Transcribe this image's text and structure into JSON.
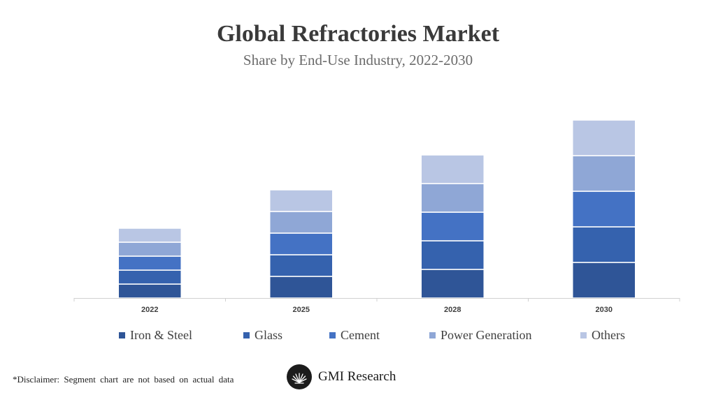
{
  "chart_data": {
    "type": "bar",
    "stacked": true,
    "title": "Global Refractories Market",
    "subtitle": "Share by End-Use Industry, 2022-2030",
    "categories": [
      "2022",
      "2025",
      "2028",
      "2030"
    ],
    "series": [
      {
        "name": "Iron & Steel",
        "color": "#2f5597",
        "values": [
          20,
          31,
          41,
          51
        ]
      },
      {
        "name": "Glass",
        "color": "#3562ae",
        "values": [
          20,
          31,
          41,
          51
        ]
      },
      {
        "name": "Cement",
        "color": "#4472c4",
        "values": [
          20,
          31,
          41,
          51
        ]
      },
      {
        "name": "Power Generation",
        "color": "#8fa7d6",
        "values": [
          20,
          31,
          41,
          51
        ]
      },
      {
        "name": "Others",
        "color": "#b9c6e4",
        "values": [
          20,
          31,
          41,
          51
        ]
      }
    ],
    "ylim": [
      0,
      260
    ],
    "y_axis_shown": false,
    "grid": false,
    "legend_position": "bottom"
  },
  "footer": {
    "disclaimer": "*Disclaimer:  Segment chart are not based on actual data",
    "brand": "GMI Research"
  }
}
